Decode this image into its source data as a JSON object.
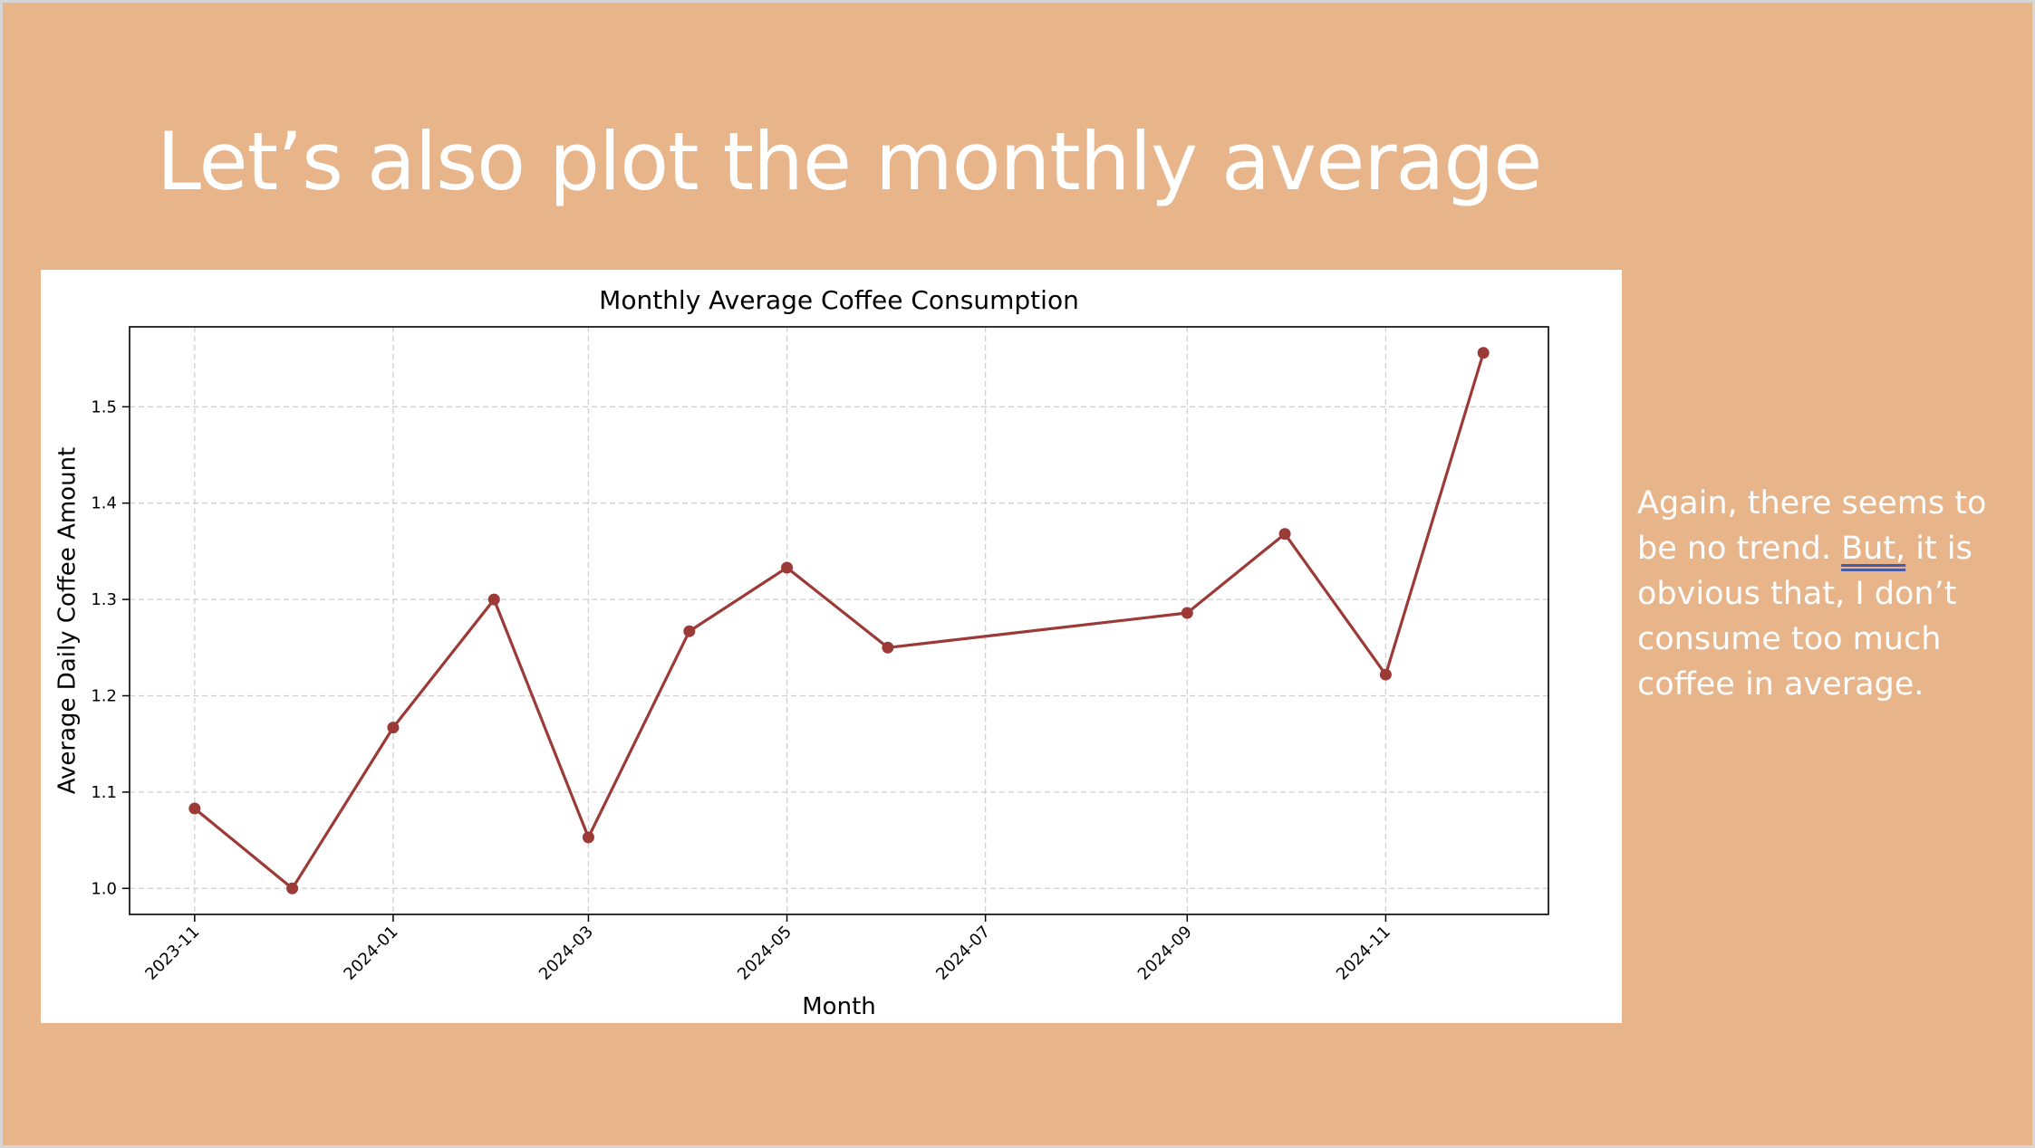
{
  "slide": {
    "title": "Let’s also plot the monthly average",
    "note_before": "Again, there seems to be no trend. ",
    "note_marked": "But,",
    "note_after": " it is obvious that, I don’t consume too much coffee in average."
  },
  "colors": {
    "slide_background": "#e8b48a",
    "line": "#9b3a36",
    "text": "#ffffff"
  },
  "chart_data": {
    "type": "line",
    "title": "Monthly Average Coffee Consumption",
    "xlabel": "Month",
    "ylabel": "Average Daily Coffee Amount",
    "x": [
      "2023-11",
      "2023-12",
      "2024-01",
      "2024-02",
      "2024-03",
      "2024-04",
      "2024-05",
      "2024-06",
      "2024-09",
      "2024-10",
      "2024-11",
      "2024-12"
    ],
    "series": [
      {
        "values": [
          1.083,
          1.0,
          1.167,
          1.3,
          1.053,
          1.267,
          1.333,
          1.25,
          1.286,
          1.368,
          1.222,
          1.556
        ]
      }
    ],
    "xticks": [
      "2023-11",
      "2024-01",
      "2024-03",
      "2024-05",
      "2024-07",
      "2024-09",
      "2024-11"
    ],
    "yticks": [
      1.0,
      1.1,
      1.2,
      1.3,
      1.4,
      1.5
    ],
    "ylim": [
      0.973,
      1.583
    ],
    "xlim": [
      "2023-10-12",
      "2024-12-21"
    ],
    "grid": true,
    "marker": "circle"
  }
}
